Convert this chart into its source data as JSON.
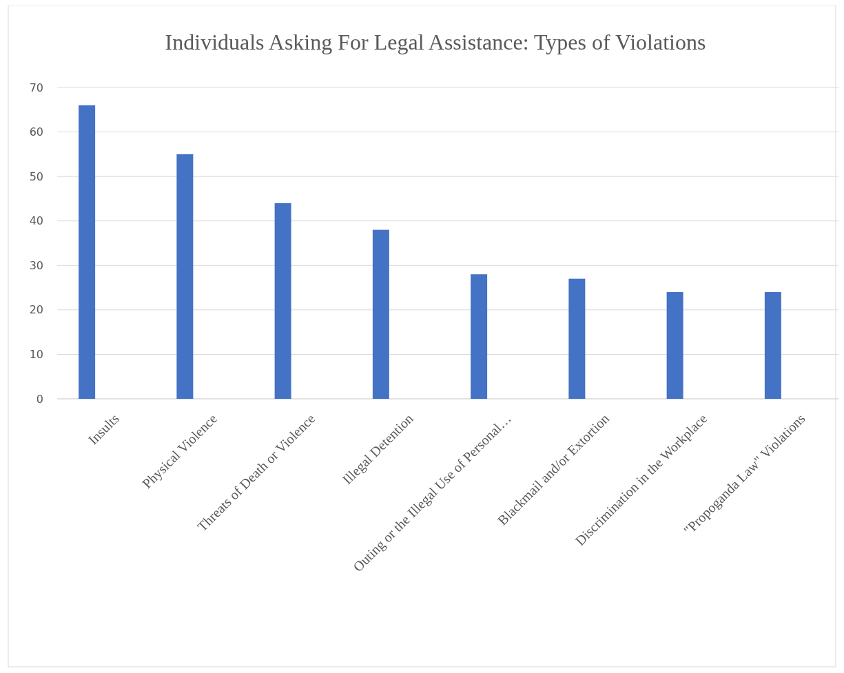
{
  "chart_data": {
    "type": "bar",
    "title": "Individuals Asking For Legal Assistance: Types of Violations",
    "categories": [
      "Insults",
      "Physical Violence",
      "Threats of Death or Violence",
      "Illegal Detention",
      "Outing or the Illegal Use of Personal…",
      "Blackmail and/or Extortion",
      "Discrimination in the Workplace",
      "\"Propoganda Law\" Violations"
    ],
    "values": [
      66,
      55,
      44,
      38,
      28,
      27,
      24,
      24
    ],
    "color": "#4472c4",
    "ylim": [
      0,
      70
    ],
    "yticks": [
      0,
      10,
      20,
      30,
      40,
      50,
      60,
      70
    ],
    "grid": "y"
  }
}
